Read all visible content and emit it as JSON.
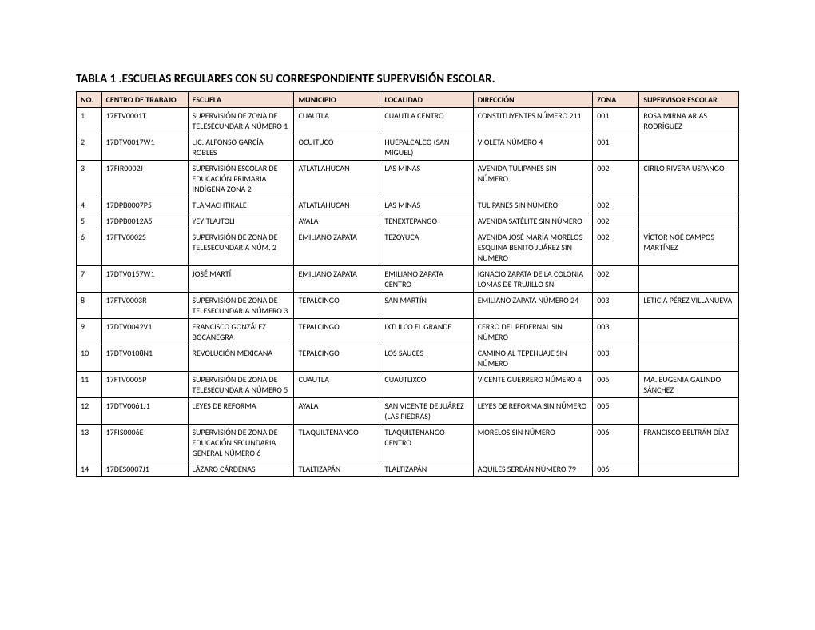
{
  "title": "TABLA 1 .ESCUELAS REGULARES CON SU CORRESPONDIENTE SUPERVISIÓN ESCOLAR.",
  "header_bg": "#f6e0d6",
  "border_color": "#000000",
  "columns": [
    "NO.",
    "CENTRO DE TRABAJO",
    "ESCUELA",
    "MUNICIPIO",
    "LOCALIDAD",
    "DIRECCIÓN",
    "ZONA",
    "SUPERVISOR ESCOLAR"
  ],
  "rows": [
    {
      "no": "1",
      "centro": "17FTV0001T",
      "escuela": "SUPERVISIÓN DE ZONA DE TELESECUNDARIA NÚMERO 1",
      "municipio": "CUAUTLA",
      "localidad": "CUAUTLA CENTRO",
      "direccion": "CONSTITUYENTES NÚMERO 211",
      "zona": "001",
      "supervisor": "ROSA MIRNA ARIAS RODRÍGUEZ"
    },
    {
      "no": "2",
      "centro": "17DTV0017W1",
      "escuela": "LIC. ALFONSO GARCÍA ROBLES",
      "municipio": "OCUITUCO",
      "localidad": "HUEPALCALCO (SAN MIGUEL)",
      "direccion": "VIOLETA NÚMERO 4",
      "zona": "001",
      "supervisor": ""
    },
    {
      "no": "3",
      "centro": "17FIR0002J",
      "escuela": "SUPERVISIÓN ESCOLAR DE EDUCACIÓN PRIMARIA INDÍGENA ZONA 2",
      "municipio": "ATLATLAHUCAN",
      "localidad": "LAS MINAS",
      "direccion": "AVENIDA TULIPANES SIN NÚMERO",
      "zona": "002",
      "supervisor": "CIRILO RIVERA USPANGO"
    },
    {
      "no": "4",
      "centro": "17DPB0007P5",
      "escuela": "TLAMACHTIKALE",
      "municipio": "ATLATLAHUCAN",
      "localidad": "LAS MINAS",
      "direccion": "TULIPANES SIN NÚMERO",
      "zona": "002",
      "supervisor": ""
    },
    {
      "no": "5",
      "centro": "17DPB0012A5",
      "escuela": "YEYITLAJTOLI",
      "municipio": "AYALA",
      "localidad": "TENEXTEPANGO",
      "direccion": "AVENIDA SATÉLITE SIN NÚMERO",
      "zona": "002",
      "supervisor": ""
    },
    {
      "no": "6",
      "centro": "17FTV0002S",
      "escuela": "SUPERVISIÓN DE ZONA DE TELESECUNDARIA NÚM. 2",
      "municipio": "EMILIANO ZAPATA",
      "localidad": "TEZOYUCA",
      "direccion": "AVENIDA JOSÉ MARÍA MORELOS ESQUINA BENITO JUÁREZ SIN NUMERO",
      "zona": "002",
      "supervisor": "VÍCTOR NOÉ CAMPOS MARTÍNEZ"
    },
    {
      "no": "7",
      "centro": "17DTV0157W1",
      "escuela": "JOSÉ MARTÍ",
      "municipio": "EMILIANO ZAPATA",
      "localidad": "EMILIANO ZAPATA CENTRO",
      "direccion": "IGNACIO ZAPATA DE LA COLONIA LOMAS DE TRUJILLO SN",
      "zona": "002",
      "supervisor": ""
    },
    {
      "no": "8",
      "centro": "17FTV0003R",
      "escuela": "SUPERVISIÓN DE ZONA DE TELESECUNDARIA NÚMERO 3",
      "municipio": "TEPALCINGO",
      "localidad": "SAN MARTÍN",
      "direccion": "EMILIANO ZAPATA NÚMERO 24",
      "zona": "003",
      "supervisor": "LETICIA PÉREZ VILLANUEVA"
    },
    {
      "no": "9",
      "centro": "17DTV0042V1",
      "escuela": "FRANCISCO GONZÁLEZ BOCANEGRA",
      "municipio": "TEPALCINGO",
      "localidad": "IXTLILCO EL GRANDE",
      "direccion": "CERRO DEL PEDERNAL SIN NÚMERO",
      "zona": "003",
      "supervisor": ""
    },
    {
      "no": "10",
      "centro": "17DTV0108N1",
      "escuela": "REVOLUCIÓN MEXICANA",
      "municipio": "TEPALCINGO",
      "localidad": "LOS SAUCES",
      "direccion": "CAMINO AL TEPEHUAJE SIN NÚMERO",
      "zona": "003",
      "supervisor": ""
    },
    {
      "no": "11",
      "centro": "17FTV0005P",
      "escuela": "SUPERVISIÓN DE ZONA DE TELESECUNDARIA NÚMERO 5",
      "municipio": "CUAUTLA",
      "localidad": "CUAUTLIXCO",
      "direccion": "VICENTE GUERRERO NÚMERO 4",
      "zona": "005",
      "supervisor": "MA. EUGENIA GALINDO SÁNCHEZ"
    },
    {
      "no": "12",
      "centro": "17DTV0061J1",
      "escuela": "LEYES DE REFORMA",
      "municipio": "AYALA",
      "localidad": "SAN VICENTE DE JUÁREZ (LAS PIEDRAS)",
      "direccion": "LEYES DE REFORMA SIN NÚMERO",
      "zona": "005",
      "supervisor": ""
    },
    {
      "no": "13",
      "centro": "17FIS0006E",
      "escuela": "SUPERVISIÓN DE ZONA DE EDUCACIÓN SECUNDARIA GENERAL NÚMERO 6",
      "municipio": "TLAQUILTENANGO",
      "localidad": "TLAQUILTENANGO CENTRO",
      "direccion": "MORELOS SIN NÚMERO",
      "zona": "006",
      "supervisor": "FRANCISCO BELTRÁN DÍAZ"
    },
    {
      "no": "14",
      "centro": "17DES0007J1",
      "escuela": "LÁZARO CÁRDENAS",
      "municipio": "TLALTIZAPÁN",
      "localidad": "TLALTIZAPÁN",
      "direccion": "AQUILES SERDÁN NÚMERO 79",
      "zona": "006",
      "supervisor": ""
    }
  ]
}
